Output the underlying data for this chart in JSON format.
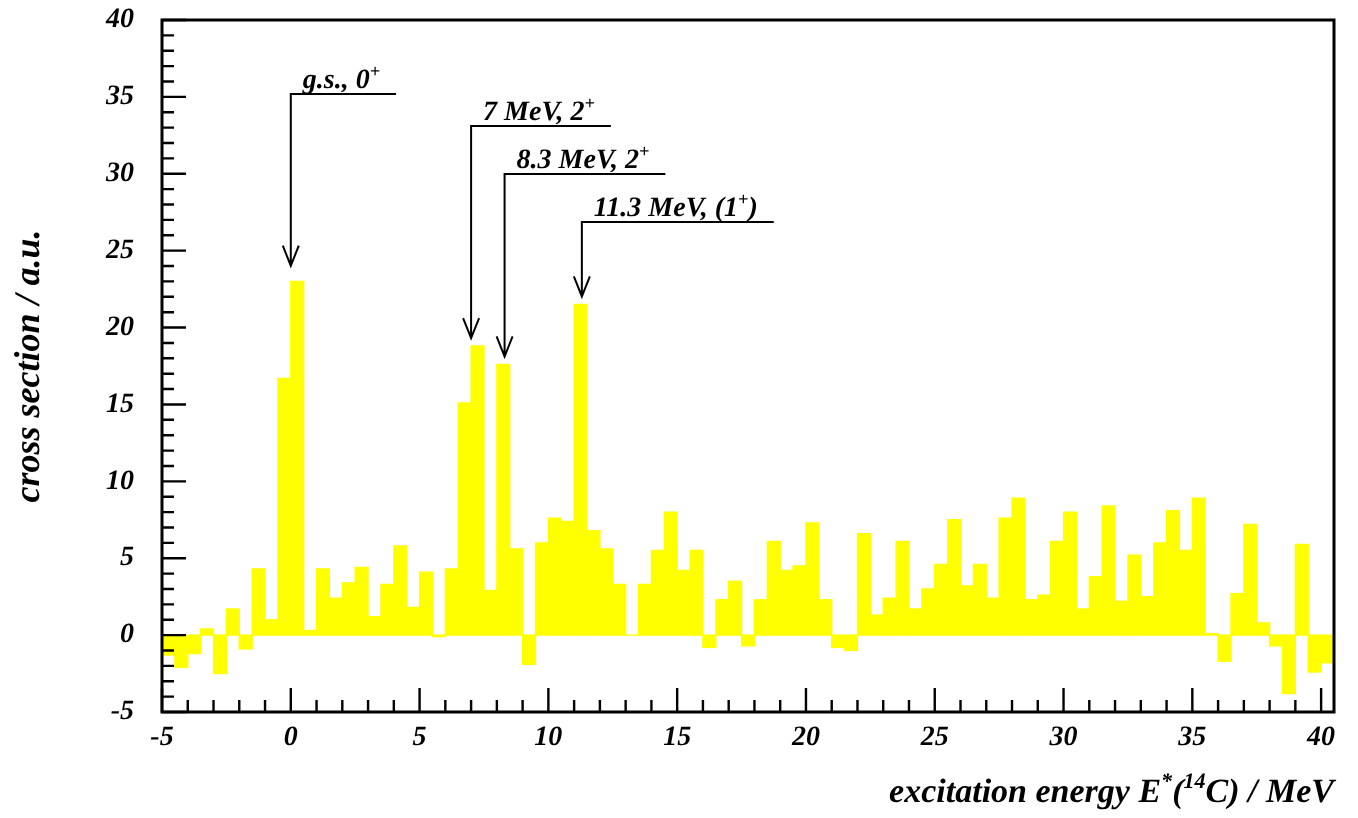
{
  "chart_data": {
    "type": "histogram",
    "ylabel": "cross section / a.u.",
    "xlabel": "excitation energy E$^{*}$($^{14}$C) / MeV",
    "bins": [
      -5,
      -4.5,
      -4,
      -3.5,
      -3,
      -2.5,
      -2,
      -1.5,
      -1,
      -0.5,
      0,
      0.5,
      1,
      1.5,
      2,
      2.5,
      3,
      3.5,
      4,
      4.5,
      5,
      5.5,
      6,
      6.5,
      7,
      7.5,
      8,
      8.5,
      9,
      9.5,
      10,
      10.5,
      11,
      11.5,
      12,
      12.5,
      13,
      13.5,
      14,
      14.5,
      15,
      15.5,
      16,
      16.5,
      17,
      17.5,
      18,
      18.5,
      19,
      19.5,
      20,
      20.5,
      21,
      21.5,
      22,
      22.5,
      23,
      23.5,
      24,
      24.5,
      25,
      25.5,
      26,
      26.5,
      27,
      27.5,
      28,
      28.5,
      29,
      29.5,
      30,
      30.5,
      31,
      31.5,
      32,
      32.5,
      33,
      33.5,
      34,
      34.5,
      35,
      35.5,
      36,
      36.5,
      37,
      37.5,
      38,
      38.5,
      39,
      39.5,
      40,
      40.5
    ],
    "values": [
      -1.3,
      -2.1,
      -1.2,
      0.4,
      -2.5,
      1.7,
      -0.9,
      4.3,
      1.0,
      16.7,
      23.0,
      0.3,
      4.3,
      2.4,
      3.4,
      4.4,
      1.2,
      3.3,
      5.8,
      1.8,
      4.1,
      -0.1,
      4.3,
      15.1,
      18.8,
      2.9,
      17.6,
      5.6,
      -1.9,
      6.0,
      7.6,
      7.4,
      21.5,
      6.8,
      5.6,
      3.3,
      0,
      3.3,
      5.5,
      8.0,
      4.2,
      5.5,
      -0.8,
      2.3,
      3.5,
      -0.7,
      2.3,
      6.1,
      4.2,
      4.5,
      7.3,
      2.3,
      -0.8,
      -1.0,
      6.6,
      1.3,
      2.4,
      6.1,
      1.7,
      3.0,
      4.6,
      7.5,
      3.2,
      4.6,
      2.4,
      7.6,
      8.9,
      2.3,
      2.6,
      6.1,
      8.0,
      1.7,
      3.8,
      8.4,
      2.2,
      5.2,
      2.5,
      6.0,
      8.1,
      5.5,
      8.9,
      0.1,
      -1.7,
      2.7,
      7.2,
      0.8,
      -0.7,
      -3.8,
      5.9,
      -2.4,
      -1.8
    ],
    "color": "#ffff00",
    "xlim": [
      -5,
      40.5
    ],
    "ylim": [
      -5,
      40
    ],
    "xticks": [
      -5,
      {
        "value": -4,
        "label": null
      },
      {
        "value": -3,
        "label": null
      },
      {
        "value": -2,
        "label": null
      },
      {
        "value": -1,
        "label": null
      },
      0,
      {
        "value": 1,
        "label": null
      },
      {
        "value": 2,
        "label": null
      },
      {
        "value": 3,
        "label": null
      },
      {
        "value": 4,
        "label": null
      },
      5,
      {
        "value": 6,
        "label": null
      },
      {
        "value": 7,
        "label": null
      },
      {
        "value": 8,
        "label": null
      },
      {
        "value": 9,
        "label": null
      },
      10,
      {
        "value": 11,
        "label": null
      },
      {
        "value": 12,
        "label": null
      },
      {
        "value": 13,
        "label": null
      },
      {
        "value": 14,
        "label": null
      },
      15,
      {
        "value": 16,
        "label": null
      },
      {
        "value": 17,
        "label": null
      },
      {
        "value": 18,
        "label": null
      },
      {
        "value": 19,
        "label": null
      },
      20,
      {
        "value": 21,
        "label": null
      },
      {
        "value": 22,
        "label": null
      },
      {
        "value": 23,
        "label": null
      },
      {
        "value": 24,
        "label": null
      },
      25,
      {
        "value": 26,
        "label": null
      },
      {
        "value": 27,
        "label": null
      },
      {
        "value": 28,
        "label": null
      },
      {
        "value": 29,
        "label": null
      },
      30,
      {
        "value": 31,
        "label": null
      },
      {
        "value": 32,
        "label": null
      },
      {
        "value": 33,
        "label": null
      },
      {
        "value": 34,
        "label": null
      },
      35,
      {
        "value": 36,
        "label": null
      },
      {
        "value": 37,
        "label": null
      },
      {
        "value": 38,
        "label": null
      },
      {
        "value": 39,
        "label": null
      },
      40
    ],
    "yticks": [
      -5,
      {
        "value": -4,
        "label": null
      },
      {
        "value": -3,
        "label": null
      },
      {
        "value": -2,
        "label": null
      },
      {
        "value": -1,
        "label": null
      },
      0,
      {
        "value": 1,
        "label": null
      },
      {
        "value": 2,
        "label": null
      },
      {
        "value": 3,
        "label": null
      },
      {
        "value": 4,
        "label": null
      },
      5,
      {
        "value": 6,
        "label": null
      },
      {
        "value": 7,
        "label": null
      },
      {
        "value": 8,
        "label": null
      },
      {
        "value": 9,
        "label": null
      },
      10,
      {
        "value": 11,
        "label": null
      },
      {
        "value": 12,
        "label": null
      },
      {
        "value": 13,
        "label": null
      },
      {
        "value": 14,
        "label": null
      },
      15,
      {
        "value": 16,
        "label": null
      },
      {
        "value": 17,
        "label": null
      },
      {
        "value": 18,
        "label": null
      },
      {
        "value": 19,
        "label": null
      },
      20,
      {
        "value": 21,
        "label": null
      },
      {
        "value": 22,
        "label": null
      },
      {
        "value": 23,
        "label": null
      },
      {
        "value": 24,
        "label": null
      },
      25,
      {
        "value": 26,
        "label": null
      },
      {
        "value": 27,
        "label": null
      },
      {
        "value": 28,
        "label": null
      },
      {
        "value": 29,
        "label": null
      },
      30,
      {
        "value": 31,
        "label": null
      },
      {
        "value": 32,
        "label": null
      },
      {
        "value": 33,
        "label": null
      },
      {
        "value": 34,
        "label": null
      },
      35,
      {
        "value": 36,
        "label": null
      },
      {
        "value": 37,
        "label": null
      },
      {
        "value": 38,
        "label": null
      },
      {
        "value": 39,
        "label": null
      },
      40
    ],
    "annotations": [
      {
        "text": "g.s., 0$^{+}$",
        "x": 0,
        "y": 23.5
      },
      {
        "text": "7 MeV, 2$^{+}$",
        "x": 7,
        "y": 18.8
      },
      {
        "text": "8.3 MeV, 2$^{+}$",
        "x": 8.3,
        "y": 17.6
      },
      {
        "text": "11.3 MeV, (1$^{+}$)",
        "x": 11.3,
        "y": 21.5
      }
    ]
  }
}
